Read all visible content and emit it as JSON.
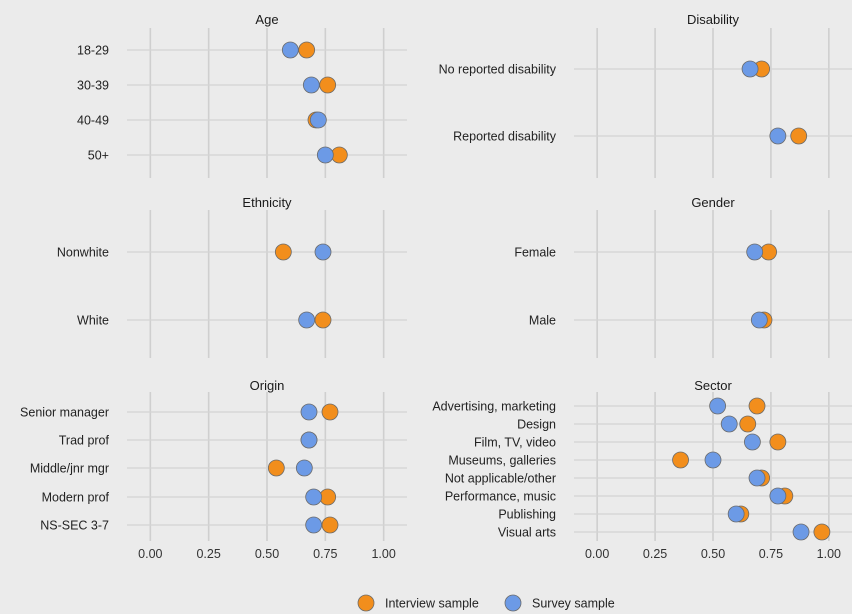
{
  "chart_data": [
    {
      "type": "scatter",
      "title": "Age",
      "categories": [
        "18-29",
        "30-39",
        "40-49",
        "50+"
      ],
      "series": [
        {
          "name": "Interview sample",
          "values": [
            0.67,
            0.76,
            0.71,
            0.81
          ]
        },
        {
          "name": "Survey sample",
          "values": [
            0.6,
            0.69,
            0.72,
            0.75
          ]
        }
      ],
      "xlim": [
        -0.1,
        1.1
      ],
      "xticks": [
        "0.00",
        "0.25",
        "0.50",
        "0.75",
        "1.00"
      ],
      "xtick_values": [
        0,
        0.25,
        0.5,
        0.75,
        1.0
      ]
    },
    {
      "type": "scatter",
      "title": "Disability",
      "categories": [
        "No reported disability",
        "Reported disability"
      ],
      "series": [
        {
          "name": "Interview sample",
          "values": [
            0.71,
            0.87
          ]
        },
        {
          "name": "Survey sample",
          "values": [
            0.66,
            0.78
          ]
        }
      ],
      "xlim": [
        -0.1,
        1.1
      ],
      "xticks": [
        "0.00",
        "0.25",
        "0.50",
        "0.75",
        "1.00"
      ],
      "xtick_values": [
        0,
        0.25,
        0.5,
        0.75,
        1.0
      ]
    },
    {
      "type": "scatter",
      "title": "Ethnicity",
      "categories": [
        "Nonwhite",
        "White"
      ],
      "series": [
        {
          "name": "Interview sample",
          "values": [
            0.57,
            0.74
          ]
        },
        {
          "name": "Survey sample",
          "values": [
            0.74,
            0.67
          ]
        }
      ],
      "xlim": [
        -0.1,
        1.1
      ],
      "xticks": [
        "0.00",
        "0.25",
        "0.50",
        "0.75",
        "1.00"
      ],
      "xtick_values": [
        0,
        0.25,
        0.5,
        0.75,
        1.0
      ]
    },
    {
      "type": "scatter",
      "title": "Gender",
      "categories": [
        "Female",
        "Male"
      ],
      "series": [
        {
          "name": "Interview sample",
          "values": [
            0.74,
            0.72
          ]
        },
        {
          "name": "Survey sample",
          "values": [
            0.68,
            0.7
          ]
        }
      ],
      "xlim": [
        -0.1,
        1.1
      ],
      "xticks": [
        "0.00",
        "0.25",
        "0.50",
        "0.75",
        "1.00"
      ],
      "xtick_values": [
        0,
        0.25,
        0.5,
        0.75,
        1.0
      ]
    },
    {
      "type": "scatter",
      "title": "Origin",
      "categories": [
        "Senior manager",
        "Trad prof",
        "Middle/jnr mgr",
        "Modern prof",
        "NS-SEC 3-7"
      ],
      "series": [
        {
          "name": "Interview sample",
          "values": [
            0.77,
            0.68,
            0.54,
            0.76,
            0.77
          ]
        },
        {
          "name": "Survey sample",
          "values": [
            0.68,
            0.68,
            0.66,
            0.7,
            0.7
          ]
        }
      ],
      "xlim": [
        -0.1,
        1.1
      ],
      "xticks": [
        "0.00",
        "0.25",
        "0.50",
        "0.75",
        "1.00"
      ],
      "xtick_values": [
        0,
        0.25,
        0.5,
        0.75,
        1.0
      ]
    },
    {
      "type": "scatter",
      "title": "Sector",
      "categories": [
        "Advertising, marketing",
        "Design",
        "Film, TV, video",
        "Museums, galleries",
        "Not applicable/other",
        "Performance, music",
        "Publishing",
        "Visual arts"
      ],
      "series": [
        {
          "name": "Interview sample",
          "values": [
            0.69,
            0.65,
            0.78,
            0.36,
            0.71,
            0.81,
            0.62,
            0.97
          ]
        },
        {
          "name": "Survey sample",
          "values": [
            0.52,
            0.57,
            0.67,
            0.5,
            0.69,
            0.78,
            0.6,
            0.88
          ]
        }
      ],
      "xlim": [
        -0.1,
        1.1
      ],
      "xticks": [
        "0.00",
        "0.25",
        "0.50",
        "0.75",
        "1.00"
      ],
      "xtick_values": [
        0,
        0.25,
        0.5,
        0.75,
        1.0
      ]
    }
  ],
  "legend": {
    "placement": "bottom",
    "items": [
      {
        "label": "Interview sample",
        "color": "#f28e1c"
      },
      {
        "label": "Survey sample",
        "color": "#6c9ae6"
      }
    ]
  },
  "colors": {
    "background": "#ebebeb",
    "grid": "#cfcfcf",
    "interview": "#f28e1c",
    "survey": "#6c9ae6",
    "marker_stroke": "#6b6b6b"
  },
  "grid": true
}
